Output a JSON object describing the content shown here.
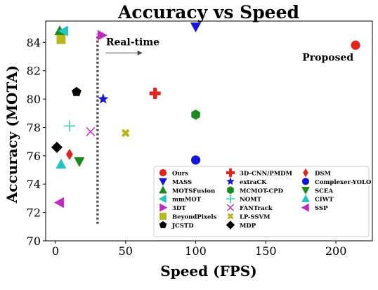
{
  "chart_data": {
    "type": "scatter",
    "title": "Accuracy vs Speed",
    "xlabel": "Speed (FPS)",
    "ylabel": "Accuracy (MOTA)",
    "xlim": [
      -7,
      226
    ],
    "ylim": [
      70,
      85.5
    ],
    "xticks": [
      0,
      50,
      100,
      150,
      200
    ],
    "yticks": [
      70,
      72,
      74,
      76,
      78,
      80,
      82,
      84
    ],
    "grid": false,
    "legend_position": "bottom-right",
    "legend_columns": 3,
    "series": [
      {
        "name": "Ours",
        "marker": "circle",
        "color": "#e8221b",
        "points": [
          [
            214,
            83.8
          ]
        ]
      },
      {
        "name": "MASS",
        "marker": "triangle-down",
        "color": "#1414e0",
        "points": [
          [
            100,
            85.1
          ]
        ]
      },
      {
        "name": "MOTSFusion",
        "marker": "triangle-up",
        "color": "#1a8a1a",
        "points": [
          [
            3,
            84.8
          ]
        ]
      },
      {
        "name": "mmMOT",
        "marker": "triangle-left",
        "color": "#21c4c4",
        "points": [
          [
            6,
            84.8
          ]
        ]
      },
      {
        "name": "3DT",
        "marker": "triangle-right",
        "color": "#c426c4",
        "points": [
          [
            33,
            84.5
          ]
        ]
      },
      {
        "name": "BeyondPixels",
        "marker": "square",
        "color": "#b8b81c",
        "points": [
          [
            4,
            84.2
          ]
        ]
      },
      {
        "name": "JCSTD",
        "marker": "pentagon",
        "color": "#000000",
        "points": [
          [
            15,
            80.5
          ]
        ]
      },
      {
        "name": "3D-CNN/PMDM",
        "marker": "plus",
        "color": "#e8221b",
        "points": [
          [
            71,
            80.4
          ]
        ]
      },
      {
        "name": "extraCK",
        "marker": "star",
        "color": "#1414e0",
        "points": [
          [
            34,
            80.0
          ]
        ]
      },
      {
        "name": "MCMOT-CPD",
        "marker": "hexagon",
        "color": "#1a8a1a",
        "points": [
          [
            100,
            78.9
          ]
        ]
      },
      {
        "name": "NOMT",
        "marker": "thin-plus",
        "color": "#21c4c4",
        "points": [
          [
            10,
            78.1
          ]
        ]
      },
      {
        "name": "FANTrack",
        "marker": "x",
        "color": "#c426c4",
        "points": [
          [
            25,
            77.7
          ]
        ]
      },
      {
        "name": "LP-SSVM",
        "marker": "thick-x",
        "color": "#b8b81c",
        "points": [
          [
            50,
            77.6
          ]
        ]
      },
      {
        "name": "MDP",
        "marker": "diamond",
        "color": "#000000",
        "points": [
          [
            1,
            76.6
          ]
        ]
      },
      {
        "name": "DSM",
        "marker": "thin-diamond",
        "color": "#e8221b",
        "points": [
          [
            10,
            76.1
          ]
        ]
      },
      {
        "name": "Complexer-YOLO",
        "marker": "circle",
        "color": "#1414e0",
        "points": [
          [
            100,
            75.7
          ]
        ]
      },
      {
        "name": "SCEA",
        "marker": "triangle-down",
        "color": "#1a8a1a",
        "points": [
          [
            17,
            75.6
          ]
        ]
      },
      {
        "name": "CIWT",
        "marker": "triangle-up",
        "color": "#21c4c4",
        "points": [
          [
            4,
            75.4
          ]
        ]
      },
      {
        "name": "SSP",
        "marker": "triangle-left",
        "color": "#c426c4",
        "points": [
          [
            3,
            72.7
          ]
        ]
      }
    ],
    "threshold_line": {
      "x": 30,
      "y_range": [
        71.2,
        84.6
      ],
      "style": "dotted",
      "color": "#555555"
    },
    "annotations": [
      {
        "text": "Real-time",
        "x": 36,
        "y": 83.8,
        "arrow": {
          "from": [
            36,
            83.25
          ],
          "to": [
            62,
            83.25
          ]
        }
      },
      {
        "text": "Proposed",
        "x": 176,
        "y": 82.7
      }
    ]
  }
}
